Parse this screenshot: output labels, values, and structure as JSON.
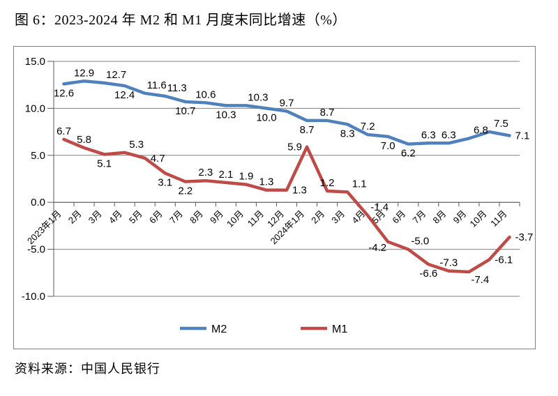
{
  "page": {
    "title": "图 6：2023-2024 年 M2 和 M1 月度末同比增速（%）",
    "source": "资料来源：中国人民银行"
  },
  "colors": {
    "m2": "#4F81BD",
    "m1": "#BE4B48",
    "grid": "#808080",
    "axis": "#595959",
    "label": "#000000",
    "frame_border": "#808080",
    "background": "#FFFFFF"
  },
  "chart_data": {
    "type": "line",
    "title": "图 6：2023-2024 年 M2 和 M1 月度末同比增速（%）",
    "xlabel": "",
    "ylabel": "",
    "categories": [
      "2023年1月",
      "2月",
      "3月",
      "4月",
      "5月",
      "6月",
      "7月",
      "8月",
      "9月",
      "10月",
      "11月",
      "12月",
      "2024年1月",
      "2月",
      "3月",
      "4月",
      "5月",
      "6月",
      "7月",
      "8月",
      "9月",
      "10月",
      "11月"
    ],
    "series": [
      {
        "name": "M2",
        "color_key": "m2",
        "values": [
          12.6,
          12.9,
          12.7,
          12.4,
          11.6,
          11.3,
          10.7,
          10.6,
          10.3,
          10.3,
          10.0,
          9.7,
          8.7,
          8.7,
          8.3,
          7.2,
          7.0,
          6.2,
          6.3,
          6.3,
          6.8,
          7.5,
          7.1
        ],
        "label_pos": [
          "below",
          "above",
          "above_right",
          "below",
          "above_right",
          "above_right",
          "below",
          "above",
          "below",
          "above_right",
          "below",
          "above",
          "below",
          "above",
          "below",
          "above",
          "below",
          "below",
          "above",
          "above",
          "above_right",
          "above_right",
          "right"
        ]
      },
      {
        "name": "M1",
        "color_key": "m1",
        "values": [
          6.7,
          5.8,
          5.1,
          5.3,
          4.7,
          3.1,
          2.2,
          2.3,
          2.1,
          1.9,
          1.3,
          1.3,
          5.9,
          1.2,
          1.1,
          -1.4,
          -4.2,
          -5.0,
          -6.6,
          -7.3,
          -7.4,
          -6.1,
          -3.7
        ],
        "label_pos": [
          "above",
          "above",
          "below",
          "above_right",
          "right",
          "below",
          "below",
          "above",
          "above",
          "above",
          "above",
          "right",
          "left",
          "above",
          "above_right",
          "above_right",
          "below_left",
          "above_right",
          "below",
          "above",
          "below_right",
          "right",
          "right"
        ]
      }
    ],
    "y_axis": {
      "min": -10,
      "max": 15,
      "ticks": [
        15,
        10,
        5,
        0,
        -5,
        -10
      ],
      "tick_labels": [
        "15.0",
        "10.0",
        "5.0",
        "0.0",
        "-5.0",
        "-10.0"
      ]
    },
    "x_axis": {
      "label_rotation": -45
    },
    "legend": {
      "items": [
        "M2",
        "M1"
      ],
      "position": "bottom"
    },
    "grid": true,
    "data_labels": true,
    "number_format": "0.0"
  }
}
